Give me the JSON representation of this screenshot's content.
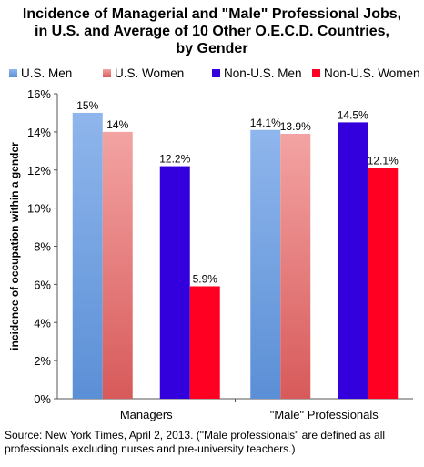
{
  "title_lines": [
    "Incidence of Managerial and \"Male\" Professional Jobs,",
    "in U.S. and Average of 10 Other O.E.C.D. Countries,",
    "by Gender"
  ],
  "source_note": "Source: New York Times, April 2, 2013. (\"Male professionals\" are defined as all professionals excluding nurses and pre-university teachers.)",
  "chart_data": {
    "type": "bar",
    "title": "Incidence of Managerial and \"Male\" Professional Jobs, in U.S. and Average of 10 Other O.E.C.D. Countries, by Gender",
    "ylabel": "incidence of occupation within a gender",
    "xlabel": "",
    "ylim": [
      0,
      16
    ],
    "yticks": [
      0,
      2,
      4,
      6,
      8,
      10,
      12,
      14,
      16
    ],
    "ytick_labels": [
      "0%",
      "2%",
      "4%",
      "6%",
      "8%",
      "10%",
      "12%",
      "14%",
      "16%"
    ],
    "categories": [
      "Managers",
      "\"Male\" Professionals"
    ],
    "legend_position": "top",
    "grid": false,
    "series": [
      {
        "name": "U.S. Men",
        "color": "#8fb6ec",
        "color_dark": "#5b8fd6",
        "values": [
          15,
          14.1
        ],
        "labels": [
          "15%",
          "14.1%"
        ]
      },
      {
        "name": "U.S. Women",
        "color": "#f3a3a3",
        "color_dark": "#d85a5a",
        "values": [
          14,
          13.9
        ],
        "labels": [
          "14%",
          "13.9%"
        ]
      },
      {
        "name": "Non-U.S. Men",
        "color": "#3300dd",
        "color_dark": "#3300dd",
        "values": [
          12.2,
          14.5
        ],
        "labels": [
          "12.2%",
          "14.5%"
        ]
      },
      {
        "name": "Non-U.S. Women",
        "color": "#ff0022",
        "color_dark": "#ff0022",
        "values": [
          5.9,
          12.1
        ],
        "labels": [
          "5.9%",
          "12.1%"
        ]
      }
    ]
  }
}
